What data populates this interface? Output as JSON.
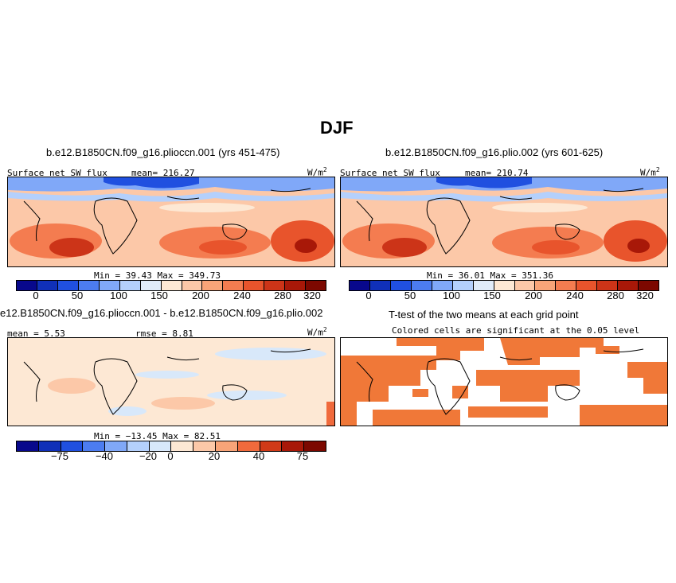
{
  "page_title": "DJF",
  "panels": [
    {
      "case": "b.e12.B1850CN.f09_g16.plioccn.001 (yrs 451-475)",
      "variable": "Surface net SW flux",
      "mean": "mean= 216.27",
      "units_main": "W/m",
      "units_exp": "2",
      "minmax": "Min =   39.43  Max =  349.73",
      "colorbar_labels": [
        "0",
        "50",
        "100",
        "150",
        "200",
        "240",
        "280",
        "320"
      ]
    },
    {
      "case": "b.e12.B1850CN.f09_g16.plio.002 (yrs 601-625)",
      "variable": "Surface net SW flux",
      "mean": "mean= 210.74",
      "units_main": "W/m",
      "units_exp": "2",
      "minmax": "Min =   36.01  Max =  351.36",
      "colorbar_labels": [
        "0",
        "50",
        "100",
        "150",
        "200",
        "240",
        "280",
        "320"
      ]
    },
    {
      "case": "e12.B1850CN.f09_g16.plioccn.001 - b.e12.B1850CN.f09_g16.plio.002",
      "mean": "mean =   5.53",
      "rmse": "rmse =   8.81",
      "units_main": "W/m",
      "units_exp": "2",
      "minmax": "Min = −13.45  Max =  82.51",
      "colorbar_labels": [
        "−75",
        "−40",
        "−20",
        "0",
        "20",
        "40",
        "75"
      ]
    },
    {
      "case": "T-test of the two means at each grid point",
      "subtitle": "Colored cells are significant at the 0.05 level"
    }
  ],
  "colors": {
    "abs_scale": [
      "#08088c",
      "#1030b8",
      "#2050e0",
      "#4c7cf0",
      "#80a8f8",
      "#b4d0fc",
      "#e0ecfa",
      "#fde8d4",
      "#fcc8a8",
      "#f8a478",
      "#f47c50",
      "#e8542c",
      "#cc3418",
      "#a81808",
      "#7c0800"
    ],
    "diff_scale": [
      "#08088c",
      "#1030b8",
      "#2050e0",
      "#4c7cf0",
      "#80a8f8",
      "#b4d0fc",
      "#d8e8fa",
      "#fde8d4",
      "#fcc8a8",
      "#f8a478",
      "#f06a3c",
      "#d03a18",
      "#a81808",
      "#7c0800"
    ],
    "significant": "#f07838"
  }
}
